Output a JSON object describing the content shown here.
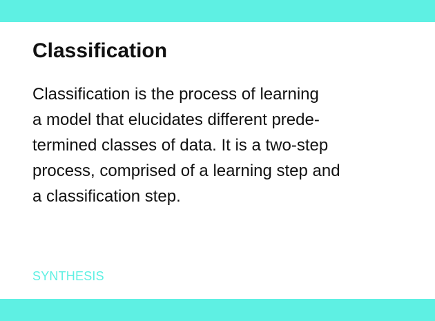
{
  "card": {
    "title": "Classification",
    "body_lines": [
      "Classification is the process of learning",
      "a model that elucidates different prede-",
      "termined classes of data. It is a two-step",
      "process, comprised of a learning step and",
      "a classification step."
    ],
    "category": "SYNTHESIS"
  },
  "colors": {
    "accent": "#5ef0e3",
    "category_text": "#5ef0e3",
    "text": "#111111",
    "background": "#ffffff"
  }
}
